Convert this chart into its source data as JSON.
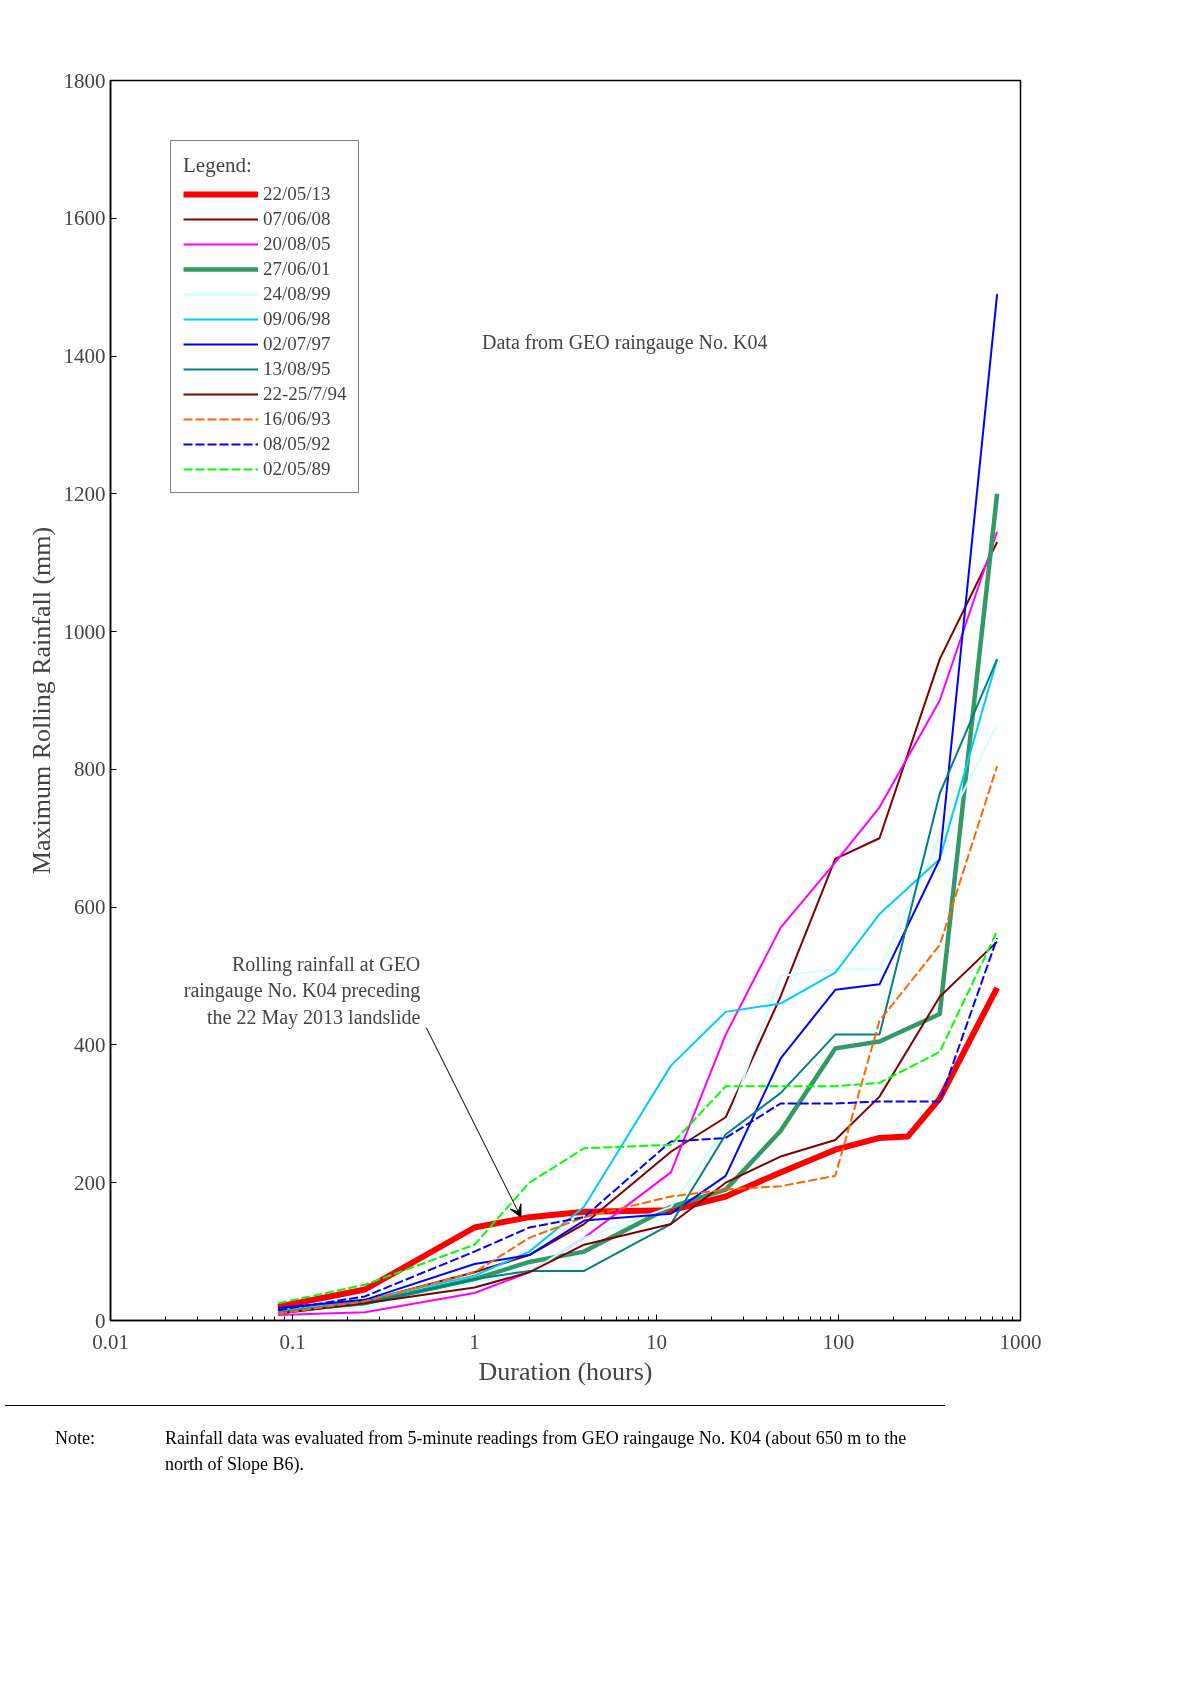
{
  "chart_data": {
    "type": "line",
    "xlabel": "Duration (hours)",
    "ylabel": "Maximum Rolling Rainfall (mm)",
    "legend_title": "Legend:",
    "legend": "top left",
    "grid": false,
    "log": "x",
    "xlim": [
      0.01,
      1000
    ],
    "ylim": [
      0,
      1800
    ],
    "xticks": [
      0.01,
      0.1,
      1,
      10,
      100,
      1000
    ],
    "yticks": [
      0,
      200,
      400,
      600,
      800,
      1000,
      1200,
      1400,
      1600,
      1800
    ],
    "x": [
      0.0833,
      0.25,
      1,
      2,
      4,
      12,
      24,
      48,
      96,
      168,
      360,
      744
    ],
    "series": [
      {
        "name": "22/05/13",
        "color": "#ff0000",
        "x": [
          0.0833,
          0.25,
          1,
          2,
          4,
          12,
          24,
          48,
          96,
          168,
          240,
          360,
          744
        ],
        "values": [
          20,
          45,
          135,
          150,
          158,
          160,
          180,
          215,
          248,
          265,
          267,
          322,
          483
        ]
      },
      {
        "name": "07/06/08",
        "color": "#800000",
        "values": [
          15,
          28,
          70,
          95,
          140,
          245,
          295,
          470,
          670,
          700,
          960,
          1130
        ]
      },
      {
        "name": "20/08/05",
        "color": "#ff00ff",
        "values": [
          8,
          12,
          40,
          70,
          120,
          215,
          415,
          570,
          665,
          745,
          900,
          1145
        ]
      },
      {
        "name": "27/06/01",
        "color": "#339966",
        "values": [
          12,
          25,
          60,
          85,
          100,
          165,
          190,
          275,
          395,
          405,
          445,
          1200
        ]
      },
      {
        "name": "24/08/99",
        "color": "#ccffff",
        "values": [
          10,
          20,
          55,
          70,
          120,
          165,
          280,
          500,
          510,
          510,
          700,
          865
        ]
      },
      {
        "name": "09/06/98",
        "color": "#00ccff",
        "values": [
          15,
          30,
          65,
          100,
          165,
          370,
          448,
          460,
          505,
          590,
          670,
          960
        ]
      },
      {
        "name": "02/07/97",
        "color": "#0000ff",
        "values": [
          18,
          30,
          82,
          95,
          145,
          155,
          210,
          380,
          480,
          488,
          670,
          1490
        ]
      },
      {
        "name": "13/08/95",
        "color": "#008080",
        "values": [
          10,
          25,
          60,
          72,
          72,
          140,
          270,
          330,
          415,
          415,
          765,
          960
        ]
      },
      {
        "name": "22-25/7/94",
        "color": "#800000",
        "values": [
          10,
          25,
          48,
          70,
          110,
          140,
          200,
          238,
          262,
          325,
          470,
          550
        ]
      },
      {
        "name": "16/06/93",
        "color": "#ff6600",
        "line_style": "dashed",
        "values": [
          10,
          28,
          70,
          120,
          150,
          180,
          190,
          195,
          210,
          435,
          545,
          805
        ]
      },
      {
        "name": "08/05/92",
        "color": "#0000ff",
        "line_style": "dashed",
        "values": [
          15,
          35,
          100,
          135,
          150,
          260,
          265,
          315,
          315,
          318,
          318,
          555
        ]
      },
      {
        "name": "02/05/89",
        "color": "#00ff00",
        "line_style": "dashed",
        "values": [
          25,
          52,
          110,
          200,
          250,
          255,
          340,
          340,
          340,
          345,
          390,
          565
        ]
      }
    ],
    "annotations": [
      {
        "text": "Rolling rainfall at GEO\nraingauge No. K04 preceding\nthe 22 May 2013 landslide",
        "x": 1.8,
        "y": 150
      },
      "Data from GEO raingauge No. K04",
      "Note:",
      "Rainfall data was evaluated from 5-minute readings from GEO raingauge No. K04 (about 650 m to the north of Slope B6)."
    ]
  }
}
